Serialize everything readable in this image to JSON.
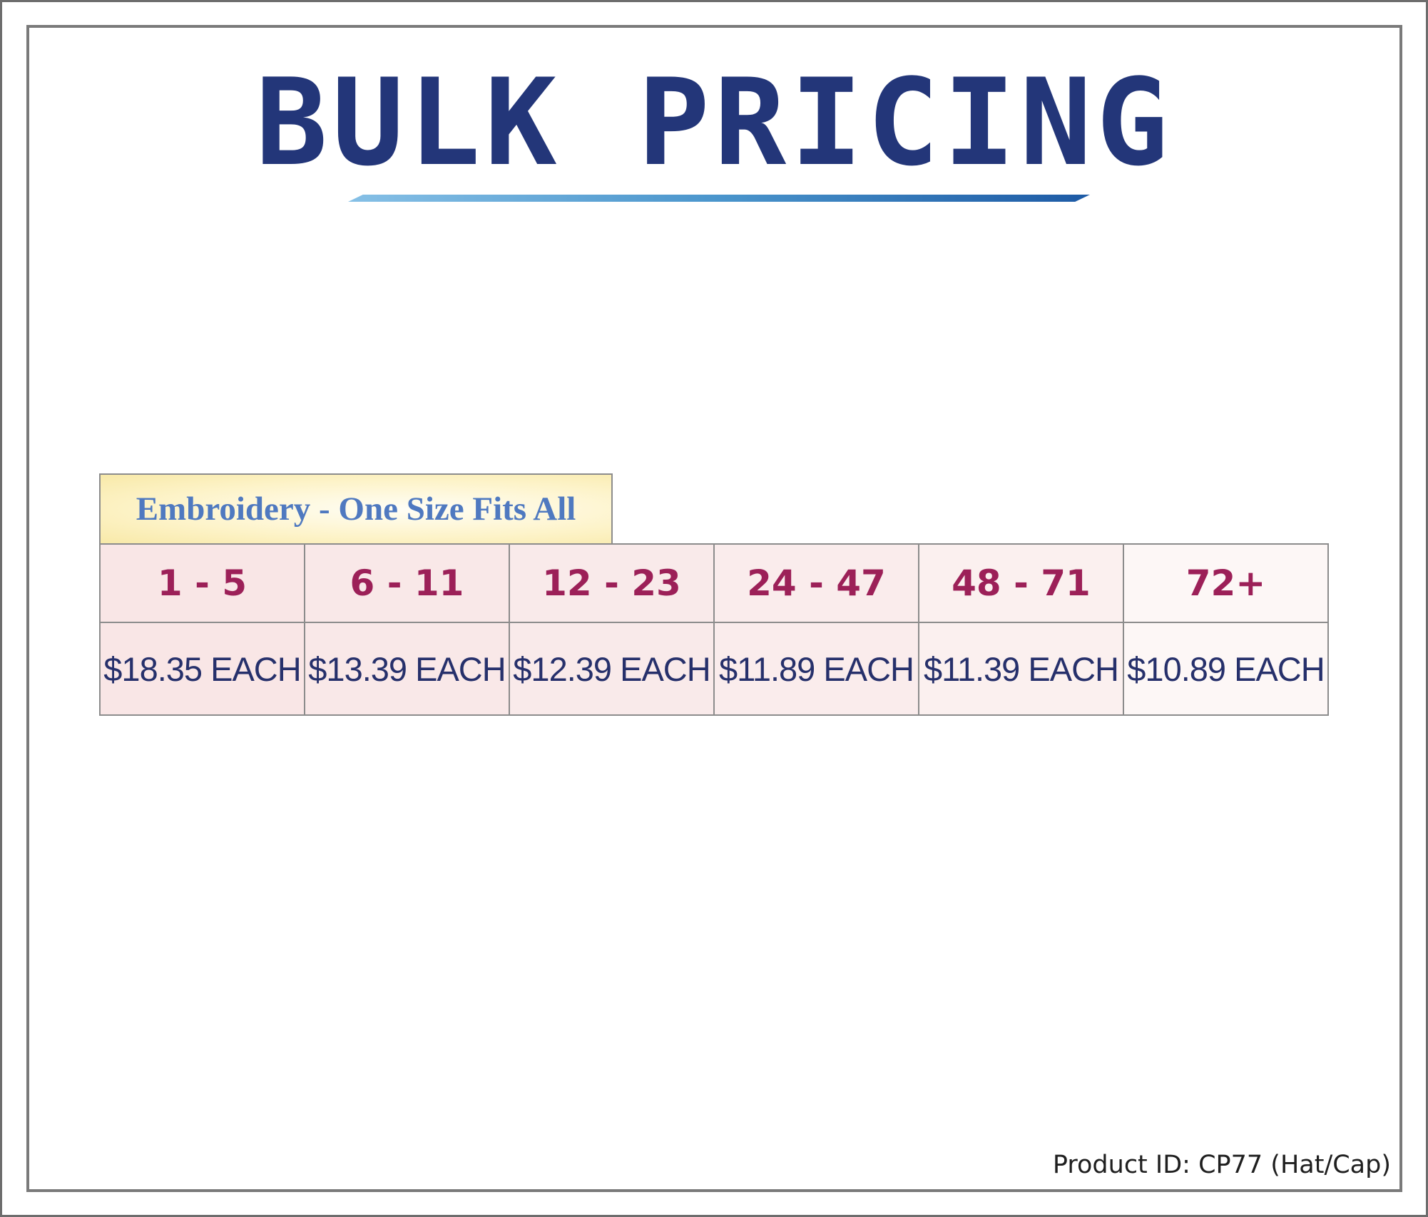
{
  "page": {
    "title": "BULK PRICING",
    "table_title": "Embroidery - One Size Fits All",
    "tiers": [
      {
        "quantity": "1 - 5",
        "price": "$18.35 EACH"
      },
      {
        "quantity": "6 - 11",
        "price": "$13.39 EACH"
      },
      {
        "quantity": "12 - 23",
        "price": "$12.39 EACH"
      },
      {
        "quantity": "24 - 47",
        "price": "$11.89 EACH"
      },
      {
        "quantity": "48 - 71",
        "price": "$11.39 EACH"
      },
      {
        "quantity": "72+",
        "price": "$10.89 EACH"
      }
    ],
    "product_id": "Product ID: CP77 (Hat/Cap)"
  },
  "colors": {
    "title": "#233679",
    "table_title_text": "#4f79c0",
    "quantity_text": "#9c2058",
    "price_text": "#26306b"
  }
}
